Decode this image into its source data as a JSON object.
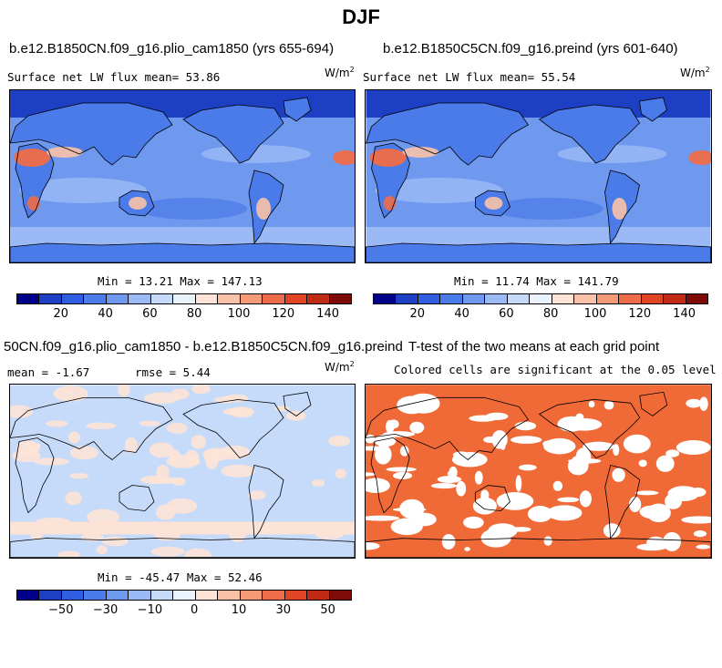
{
  "figure_title": "DJF",
  "panels": {
    "p1": {
      "title": "b.e12.B1850CN.f09_g16.plio_cam1850 (yrs 655-694)",
      "stat": "Surface net LW flux mean=  53.86",
      "unit_base": "W/m",
      "unit_exp": "2",
      "minmax": "Min =  13.21 Max = 147.13"
    },
    "p2": {
      "title": "b.e12.B1850C5CN.f09_g16.preind (yrs 601-640)",
      "stat": "Surface net LW flux mean=  55.54",
      "unit_base": "W/m",
      "unit_exp": "2",
      "minmax": "Min =  11.74 Max = 141.79"
    },
    "p3": {
      "title": "50CN.f09_g16.plio_cam1850 - b.e12.B1850C5CN.f09_g16.preind",
      "stat_mean": "mean =  -1.67",
      "stat_rmse": "rmse =   5.44",
      "unit_base": "W/m",
      "unit_exp": "2",
      "minmax": "Min = -45.47 Max =  52.46"
    },
    "p4": {
      "title": "T-test of the two means at each grid point",
      "subtitle": "Colored cells are significant at the 0.05 level"
    }
  },
  "colorbars": {
    "absolute": {
      "ticks": [
        "20",
        "40",
        "60",
        "80",
        "100",
        "120",
        "140"
      ],
      "colors": [
        "#00008b",
        "#1c3fc4",
        "#2f5fe0",
        "#4a7be8",
        "#6f98ef",
        "#9bbaf5",
        "#c6dafa",
        "#eaf2fe",
        "#fde3d6",
        "#f9c2a8",
        "#f49a77",
        "#ee6d48",
        "#e04625",
        "#c12a14",
        "#7e0b07"
      ]
    },
    "difference": {
      "ticks": [
        "−50",
        "−30",
        "−10",
        "0",
        "10",
        "30",
        "50"
      ],
      "colors": [
        "#00008b",
        "#1c3fc4",
        "#2f5fe0",
        "#4a7be8",
        "#6f98ef",
        "#9bbaf5",
        "#c6dafa",
        "#eaf2fe",
        "#fde3d6",
        "#f9c2a8",
        "#f49a77",
        "#ee6d48",
        "#e04625",
        "#c12a14",
        "#7e0b07"
      ]
    }
  },
  "map_colors": {
    "ocean_mid": "#6f98ef",
    "ocean_deep": "#4a7be8",
    "ocean_light": "#9bbaf5",
    "polar": "#1c3fc4",
    "hot": "#ee6d48",
    "warm": "#f9c2a8",
    "diff_base": "#c6dafa",
    "diff_warm": "#fde3d6",
    "ttest_fill": "#f06a38"
  }
}
